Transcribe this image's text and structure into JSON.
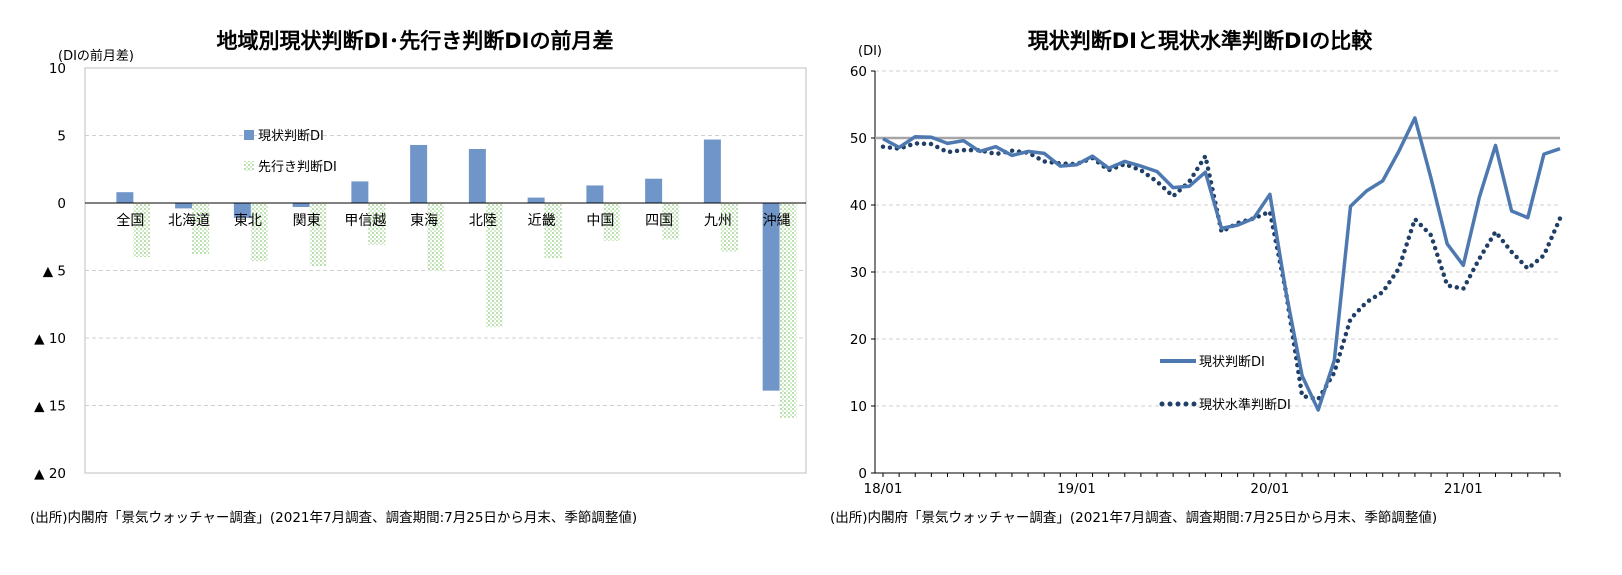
{
  "chart_data": [
    {
      "type": "bar",
      "title": "地域別現状判断DI･先行き判断DIの前月差",
      "unit_label": "(DIの前月差)",
      "source": "(出所)内閣府「景気ウォッチャー調査」(2021年7月調査、調査期間:7月25日から月末、季節調整値)",
      "categories": [
        "全国",
        "北海道",
        "東北",
        "関東",
        "甲信越",
        "東海",
        "北陸",
        "近畿",
        "中国",
        "四国",
        "九州",
        "沖縄"
      ],
      "series": [
        {
          "name": "現状判断DI",
          "color": "#7096c9",
          "pattern": "solid",
          "values": [
            0.8,
            -0.4,
            -1.1,
            -0.3,
            1.6,
            4.3,
            4.0,
            0.4,
            1.3,
            1.8,
            4.7,
            -13.9
          ]
        },
        {
          "name": "先行き判断DI",
          "color": "#9ed08a",
          "pattern": "dotted",
          "values": [
            -4.0,
            -3.8,
            -4.3,
            -4.7,
            -3.1,
            -5.0,
            -9.2,
            -4.1,
            -2.8,
            -2.7,
            -3.6,
            -15.9
          ]
        }
      ],
      "ylim": [
        -20,
        10
      ],
      "yticks": [
        {
          "value": 10,
          "label": "10"
        },
        {
          "value": 5,
          "label": "5"
        },
        {
          "value": 0,
          "label": "0"
        },
        {
          "value": -5,
          "label": "▲ 5"
        },
        {
          "value": -10,
          "label": "▲ 10"
        },
        {
          "value": -15,
          "label": "▲ 15"
        },
        {
          "value": -20,
          "label": "▲ 20"
        }
      ],
      "grid": true,
      "legend_position": "upper-left"
    },
    {
      "type": "line",
      "title": "現状判断DIと現状水準判断DIの比較",
      "unit_label": "(DI)",
      "source": "(出所)内閣府「景気ウォッチャー調査」(2021年7月調査、調査期間:7月25日から月末、季節調整値)",
      "x": [
        "2018-01",
        "2018-02",
        "2018-03",
        "2018-04",
        "2018-05",
        "2018-06",
        "2018-07",
        "2018-08",
        "2018-09",
        "2018-10",
        "2018-11",
        "2018-12",
        "2019-01",
        "2019-02",
        "2019-03",
        "2019-04",
        "2019-05",
        "2019-06",
        "2019-07",
        "2019-08",
        "2019-09",
        "2019-10",
        "2019-11",
        "2019-12",
        "2020-01",
        "2020-02",
        "2020-03",
        "2020-04",
        "2020-05",
        "2020-06",
        "2020-07",
        "2020-08",
        "2020-09",
        "2020-10",
        "2020-11",
        "2020-12",
        "2021-01",
        "2021-02",
        "2021-03",
        "2021-04",
        "2021-05",
        "2021-06",
        "2021-07"
      ],
      "xticks": [
        {
          "value": "2018-01",
          "label": "18/01"
        },
        {
          "value": "2019-01",
          "label": "19/01"
        },
        {
          "value": "2020-01",
          "label": "20/01"
        },
        {
          "value": "2021-01",
          "label": "21/01"
        }
      ],
      "series": [
        {
          "name": "現状判断DI",
          "color": "#4e79b0",
          "style": "solid",
          "values": [
            49.9,
            48.6,
            50.2,
            50.1,
            49.2,
            49.6,
            48.0,
            48.7,
            47.4,
            48.0,
            47.7,
            45.8,
            46.0,
            47.3,
            45.5,
            46.5,
            45.8,
            45.0,
            42.6,
            42.8,
            44.9,
            36.5,
            37.0,
            38.0,
            41.6,
            27.0,
            14.5,
            9.4,
            16.8,
            39.8,
            42.1,
            43.6,
            48.0,
            53.0,
            44.0,
            34.2,
            31.0,
            41.2,
            48.9,
            39.1,
            38.1,
            47.6,
            48.4
          ]
        },
        {
          "name": "現状水準判断DI",
          "color": "#1f3f66",
          "style": "dotted",
          "values": [
            48.7,
            48.4,
            49.2,
            49.1,
            47.9,
            48.2,
            48.2,
            47.6,
            48.1,
            47.8,
            46.5,
            46.2,
            46.1,
            47.0,
            45.2,
            46.1,
            45.2,
            43.5,
            41.3,
            43.5,
            47.3,
            36.0,
            37.3,
            38.0,
            39.0,
            27.0,
            11.5,
            11.0,
            15.0,
            23.0,
            25.5,
            27.0,
            30.5,
            37.9,
            35.5,
            28.0,
            27.5,
            32.0,
            36.0,
            33.0,
            30.5,
            32.5,
            38.0
          ]
        }
      ],
      "reference_line": {
        "value": 50,
        "color": "#a6a6a6"
      },
      "ylim": [
        0,
        60
      ],
      "yticks": [
        {
          "value": 0,
          "label": "0"
        },
        {
          "value": 10,
          "label": "10"
        },
        {
          "value": 20,
          "label": "20"
        },
        {
          "value": 30,
          "label": "30"
        },
        {
          "value": 40,
          "label": "40"
        },
        {
          "value": 50,
          "label": "50"
        },
        {
          "value": 60,
          "label": "60"
        }
      ],
      "grid": true,
      "legend_position": "lower-center"
    }
  ]
}
